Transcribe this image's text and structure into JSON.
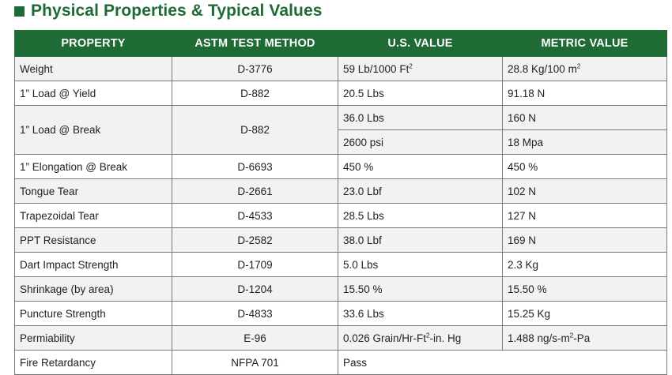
{
  "title": "Physical Properties & Typical Values",
  "headers": [
    "PROPERTY",
    "ASTM TEST METHOD",
    "U.S. VALUE",
    "METRIC VALUE"
  ],
  "rows": [
    {
      "property": "Weight",
      "method": "D-3776",
      "us": "59 Lb/1000 Ft",
      "us_sup": "2",
      "metric": "28.8 Kg/100 m",
      "metric_sup": "2"
    },
    {
      "property": "1” Load @ Yield",
      "method": "D-882",
      "us": "20.5 Lbs",
      "metric": "91.18 N"
    },
    {
      "property": "1” Load @ Break",
      "method": "D-882",
      "us": "36.0 Lbs",
      "metric": "160 N",
      "us2": "2600 psi",
      "metric2": "18 Mpa"
    },
    {
      "property": "1” Elongation @ Break",
      "method": "D-6693",
      "us": "450 %",
      "metric": "450 %"
    },
    {
      "property": "Tongue Tear",
      "method": "D-2661",
      "us": "23.0 Lbf",
      "metric": "102 N"
    },
    {
      "property": "Trapezoidal Tear",
      "method": "D-4533",
      "us": "28.5 Lbs",
      "metric": "127 N"
    },
    {
      "property": "PPT Resistance",
      "method": "D-2582",
      "us": "38.0 Lbf",
      "metric": "169 N"
    },
    {
      "property": "Dart Impact Strength",
      "method": "D-1709",
      "us": "5.0 Lbs",
      "metric": "2.3 Kg"
    },
    {
      "property": "Shrinkage (by area)",
      "method": "D-1204",
      "us": "15.50 %",
      "metric": "15.50 %"
    },
    {
      "property": "Puncture Strength",
      "method": "D-4833",
      "us": "33.6 Lbs",
      "metric": "15.25 Kg"
    },
    {
      "property": "Permiability",
      "method": "E-96",
      "us": "0.026 Grain/Hr-Ft",
      "us_sup": "2",
      "us_tail": "-in. Hg",
      "metric": "1.488 ng/s-m",
      "metric_sup": "2",
      "metric_tail": "-Pa"
    },
    {
      "property": "Fire Retardancy",
      "method": "NFPA 701",
      "us": "Pass",
      "metric": ""
    }
  ],
  "colors": {
    "brand_green": "#1e6b35",
    "shade": "#f2f2f2"
  }
}
